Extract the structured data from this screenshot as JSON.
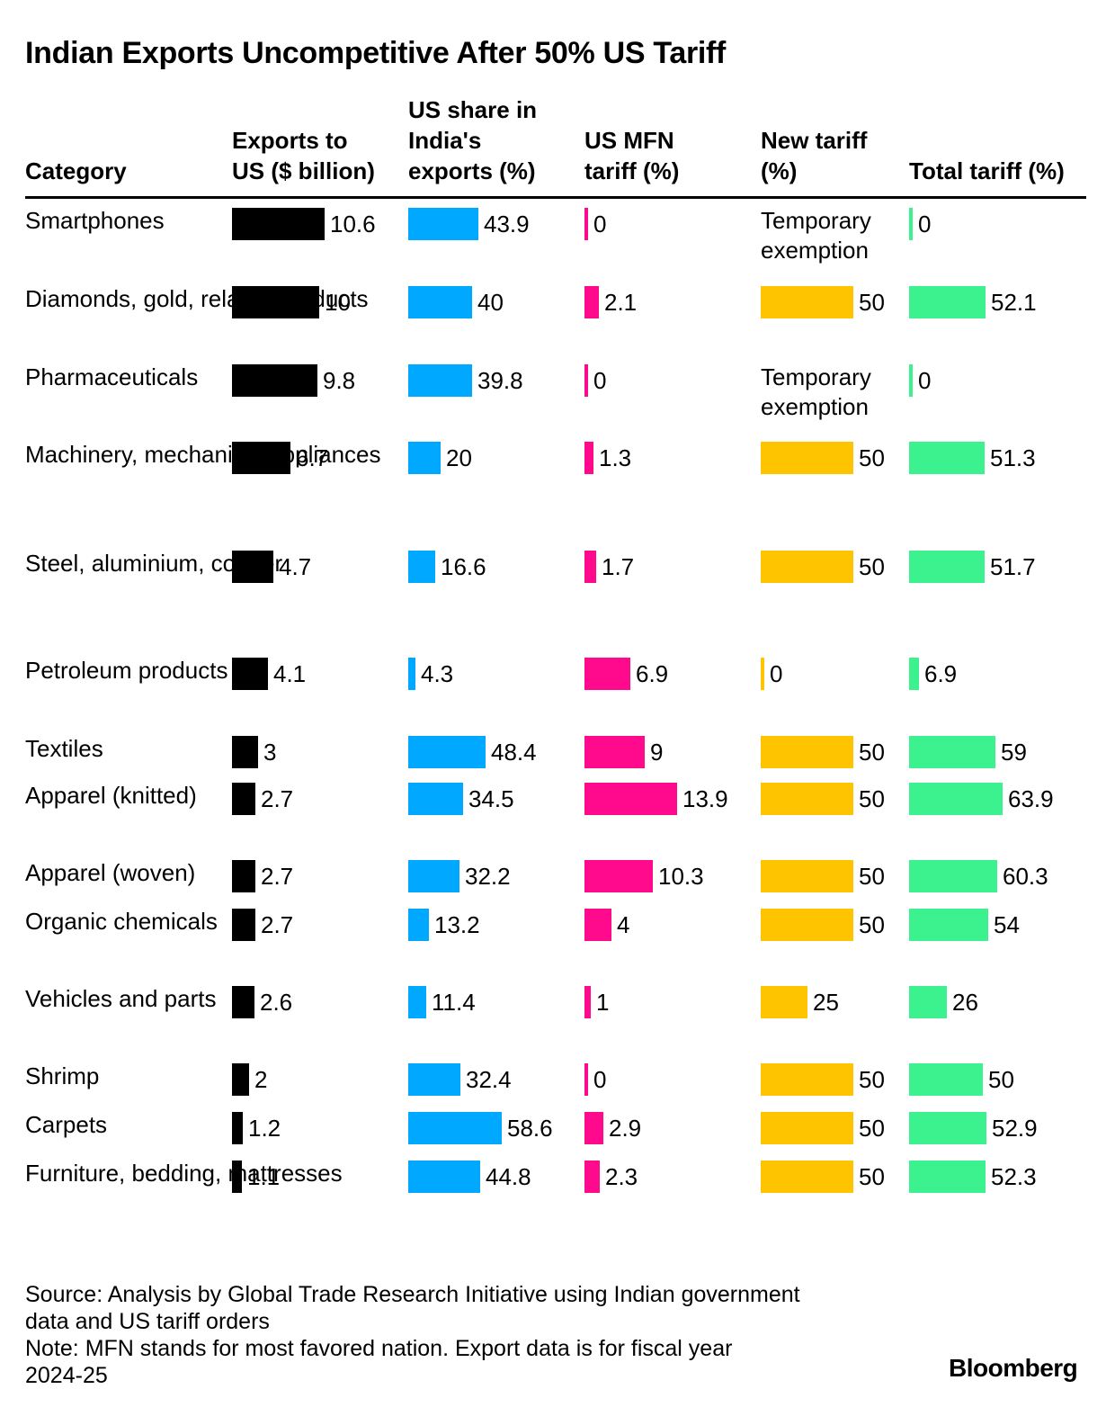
{
  "title": "Indian Exports Uncompetitive After 50% US Tariff",
  "headers": {
    "category": "Category",
    "exports": "Exports to\nUS ($ billion)",
    "share": "US share in\nIndia's\nexports (%)",
    "mfn": "US MFN\ntariff (%)",
    "new": "New tariff\n(%)",
    "total": "Total tariff (%)"
  },
  "colors": {
    "exports": "#000000",
    "share": "#00a8ff",
    "mfn": "#ff0a8c",
    "new": "#ffc400",
    "total": "#3cf28f"
  },
  "chart_data": {
    "type": "table",
    "title": "Indian Exports Uncompetitive After 50% US Tariff",
    "columns": [
      "Category",
      "Exports to US ($ billion)",
      "US share in India's exports (%)",
      "US MFN tariff (%)",
      "New tariff (%)",
      "Total tariff (%)"
    ],
    "rows": [
      {
        "category": "Smartphones",
        "exports": "10.6",
        "share": "43.9",
        "mfn": "0",
        "new": "Temporary exemption",
        "total": "0"
      },
      {
        "category": "Diamonds, gold, related products",
        "exports": "10",
        "share": "40",
        "mfn": "2.1",
        "new": "50",
        "total": "52.1"
      },
      {
        "category": "Pharmaceuticals",
        "exports": "9.8",
        "share": "39.8",
        "mfn": "0",
        "new": "Temporary exemption",
        "total": "0"
      },
      {
        "category": "Machinery, mechanical appliances",
        "exports": "6.7",
        "share": "20",
        "mfn": "1.3",
        "new": "50",
        "total": "51.3"
      },
      {
        "category": "Steel, aluminium, copper",
        "exports": "4.7",
        "share": "16.6",
        "mfn": "1.7",
        "new": "50",
        "total": "51.7"
      },
      {
        "category": "Petroleum products",
        "exports": "4.1",
        "share": "4.3",
        "mfn": "6.9",
        "new": "0",
        "total": "6.9"
      },
      {
        "category": "Textiles",
        "exports": "3",
        "share": "48.4",
        "mfn": "9",
        "new": "50",
        "total": "59"
      },
      {
        "category": "Apparel (knitted)",
        "exports": "2.7",
        "share": "34.5",
        "mfn": "13.9",
        "new": "50",
        "total": "63.9"
      },
      {
        "category": "Apparel (woven)",
        "exports": "2.7",
        "share": "32.2",
        "mfn": "10.3",
        "new": "50",
        "total": "60.3"
      },
      {
        "category": "Organic chemicals",
        "exports": "2.7",
        "share": "13.2",
        "mfn": "4",
        "new": "50",
        "total": "54"
      },
      {
        "category": "Vehicles and parts",
        "exports": "2.6",
        "share": "11.4",
        "mfn": "1",
        "new": "25",
        "total": "26"
      },
      {
        "category": "Shrimp",
        "exports": "2",
        "share": "32.4",
        "mfn": "0",
        "new": "50",
        "total": "50"
      },
      {
        "category": "Carpets",
        "exports": "1.2",
        "share": "58.6",
        "mfn": "2.9",
        "new": "50",
        "total": "52.9"
      },
      {
        "category": "Furniture, bedding, mattresses",
        "exports": "1.1",
        "share": "44.8",
        "mfn": "2.3",
        "new": "50",
        "total": "52.3"
      }
    ]
  },
  "footnote": "Source: Analysis by Global Trade Research Initiative using Indian government\ndata and US tariff orders\nNote: MFN stands for most favored nation. Export data is for fiscal year\n2024-25",
  "brand": "Bloomberg"
}
